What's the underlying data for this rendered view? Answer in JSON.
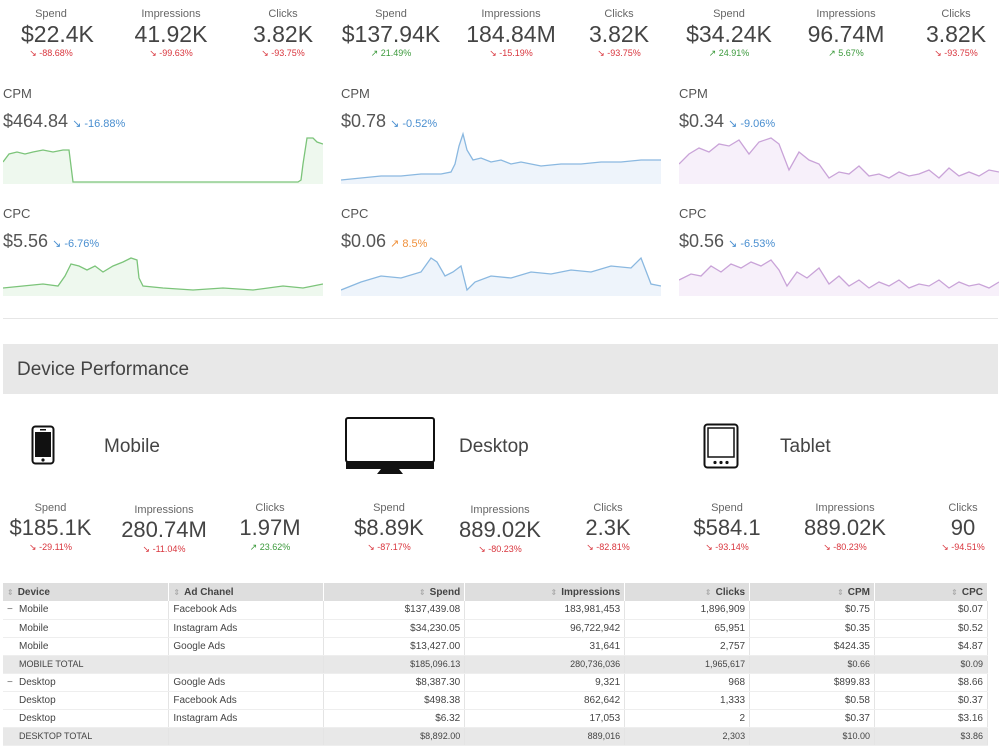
{
  "panels": [
    {
      "kpis": [
        {
          "label": "Spend",
          "value": "$22.4K",
          "change": "↘ -88.68%",
          "trend": "down"
        },
        {
          "label": "Impressions",
          "value": "41.92K",
          "change": "↘ -99.63%",
          "trend": "down"
        },
        {
          "label": "Clicks",
          "value": "3.82K",
          "change": "↘ -93.75%",
          "trend": "down"
        }
      ],
      "cpm": {
        "name": "CPM",
        "value": "$464.84",
        "change": "↘ -16.88%"
      },
      "cpc": {
        "name": "CPC",
        "value": "$5.56",
        "change": "↘ -6.76%"
      },
      "color": "#7cc47a",
      "fill": "#eef8ee"
    },
    {
      "kpis": [
        {
          "label": "Spend",
          "value": "$137.94K",
          "change": "↗ 21.49%",
          "trend": "up"
        },
        {
          "label": "Impressions",
          "value": "184.84M",
          "change": "↘ -15.19%",
          "trend": "down"
        },
        {
          "label": "Clicks",
          "value": "3.82K",
          "change": "↘ -93.75%",
          "trend": "down"
        }
      ],
      "cpm": {
        "name": "CPM",
        "value": "$0.78",
        "change": "↘ -0.52%"
      },
      "cpc": {
        "name": "CPC",
        "value": "$0.06",
        "change": "↗ 8.5%"
      },
      "color": "#8ab8e0",
      "fill": "#eef4fb"
    },
    {
      "kpis": [
        {
          "label": "Spend",
          "value": "$34.24K",
          "change": "↗ 24.91%",
          "trend": "up"
        },
        {
          "label": "Impressions",
          "value": "96.74M",
          "change": "↗ 5.67%",
          "trend": "up"
        },
        {
          "label": "Clicks",
          "value": "3.82K",
          "change": "↘ -93.75%",
          "trend": "down"
        }
      ],
      "cpm": {
        "name": "CPM",
        "value": "$0.34",
        "change": "↘ -9.06%"
      },
      "cpc": {
        "name": "CPC",
        "value": "$0.56",
        "change": "↘ -6.53%"
      },
      "color": "#c9a3d8",
      "fill": "#f7f0fa"
    }
  ],
  "section_title": "Device Performance",
  "devices": [
    {
      "name": "Mobile",
      "icon": "mobile-phone-icon",
      "kpis": [
        {
          "label": "Spend",
          "value": "$185.1K",
          "change": "↘ -29.11%",
          "trend": "down"
        },
        {
          "label": "Impressions",
          "value": "280.74M",
          "change": "↘ -11.04%",
          "trend": "down"
        },
        {
          "label": "Clicks",
          "value": "1.97M",
          "change": "↗ 23.62%",
          "trend": "up"
        }
      ]
    },
    {
      "name": "Desktop",
      "icon": "desktop-monitor-icon",
      "kpis": [
        {
          "label": "Spend",
          "value": "$8.89K",
          "change": "↘ -87.17%",
          "trend": "down"
        },
        {
          "label": "Impressions",
          "value": "889.02K",
          "change": "↘ -80.23%",
          "trend": "down"
        },
        {
          "label": "Clicks",
          "value": "2.3K",
          "change": "↘ -82.81%",
          "trend": "down"
        }
      ]
    },
    {
      "name": "Tablet",
      "icon": "tablet-icon",
      "kpis": [
        {
          "label": "Spend",
          "value": "$584.1",
          "change": "↘ -93.14%",
          "trend": "down"
        },
        {
          "label": "Impressions",
          "value": "889.02K",
          "change": "↘ -80.23%",
          "trend": "down"
        },
        {
          "label": "Clicks",
          "value": "90",
          "change": "↘ -94.51%",
          "trend": "down"
        }
      ]
    }
  ],
  "table": {
    "headers": [
      "Device",
      "Ad Chanel",
      "Spend",
      "Impressions",
      "Clicks",
      "CPM",
      "CPC"
    ],
    "rows": [
      {
        "kind": "first",
        "device": "Mobile",
        "channel": "Facebook Ads",
        "spend": "$137,439.08",
        "impressions": "183,981,453",
        "clicks": "1,896,909",
        "cpm": "$0.75",
        "cpc": "$0.07"
      },
      {
        "kind": "row",
        "device": "Mobile",
        "channel": "Instagram Ads",
        "spend": "$34,230.05",
        "impressions": "96,722,942",
        "clicks": "65,951",
        "cpm": "$0.35",
        "cpc": "$0.52"
      },
      {
        "kind": "row",
        "device": "Mobile",
        "channel": "Google Ads",
        "spend": "$13,427.00",
        "impressions": "31,641",
        "clicks": "2,757",
        "cpm": "$424.35",
        "cpc": "$4.87"
      },
      {
        "kind": "total",
        "device": "MOBILE TOTAL",
        "channel": "",
        "spend": "$185,096.13",
        "impressions": "280,736,036",
        "clicks": "1,965,617",
        "cpm": "$0.66",
        "cpc": "$0.09"
      },
      {
        "kind": "first",
        "device": "Desktop",
        "channel": "Google Ads",
        "spend": "$8,387.30",
        "impressions": "9,321",
        "clicks": "968",
        "cpm": "$899.83",
        "cpc": "$8.66"
      },
      {
        "kind": "row",
        "device": "Desktop",
        "channel": "Facebook Ads",
        "spend": "$498.38",
        "impressions": "862,642",
        "clicks": "1,333",
        "cpm": "$0.58",
        "cpc": "$0.37"
      },
      {
        "kind": "row",
        "device": "Desktop",
        "channel": "Instagram Ads",
        "spend": "$6.32",
        "impressions": "17,053",
        "clicks": "2",
        "cpm": "$0.37",
        "cpc": "$3.16"
      },
      {
        "kind": "total",
        "device": "DESKTOP TOTAL",
        "channel": "",
        "spend": "$8,892.00",
        "impressions": "889,016",
        "clicks": "2,303",
        "cpm": "$10.00",
        "cpc": "$3.86"
      }
    ]
  }
}
